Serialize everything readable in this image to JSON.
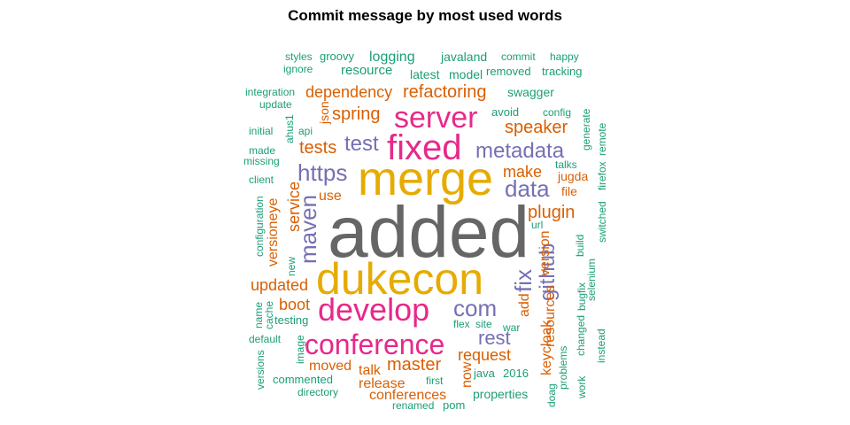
{
  "chart_data": {
    "type": "wordcloud",
    "title": "Commit message by most used words",
    "palette": {
      "green": "#1b9e77",
      "orange": "#d95f02",
      "purple": "#7570b3",
      "pink": "#e7298a",
      "gold": "#e6ab02",
      "gray": "#666666"
    },
    "words": [
      {
        "text": "added",
        "color": "gray"
      },
      {
        "text": "merge",
        "color": "gold"
      },
      {
        "text": "dukecon",
        "color": "gold"
      },
      {
        "text": "fixed",
        "color": "pink"
      },
      {
        "text": "server",
        "color": "pink"
      },
      {
        "text": "develop",
        "color": "pink"
      },
      {
        "text": "conference",
        "color": "pink"
      },
      {
        "text": "https",
        "color": "purple"
      },
      {
        "text": "metadata",
        "color": "purple"
      },
      {
        "text": "data",
        "color": "purple"
      },
      {
        "text": "maven",
        "color": "purple"
      },
      {
        "text": "test",
        "color": "purple"
      },
      {
        "text": "com",
        "color": "purple"
      },
      {
        "text": "github",
        "color": "purple"
      },
      {
        "text": "fix",
        "color": "purple"
      },
      {
        "text": "rest",
        "color": "purple"
      },
      {
        "text": "refactoring",
        "color": "orange"
      },
      {
        "text": "dependency",
        "color": "orange"
      },
      {
        "text": "spring",
        "color": "orange"
      },
      {
        "text": "speaker",
        "color": "orange"
      },
      {
        "text": "tests",
        "color": "orange"
      },
      {
        "text": "make",
        "color": "orange"
      },
      {
        "text": "plugin",
        "color": "orange"
      },
      {
        "text": "master",
        "color": "orange"
      },
      {
        "text": "request",
        "color": "orange"
      },
      {
        "text": "service",
        "color": "orange"
      },
      {
        "text": "version",
        "color": "orange"
      },
      {
        "text": "updated",
        "color": "orange"
      },
      {
        "text": "boot",
        "color": "orange"
      },
      {
        "text": "resources",
        "color": "orange"
      },
      {
        "text": "keycloak",
        "color": "orange"
      },
      {
        "text": "release",
        "color": "orange"
      },
      {
        "text": "conferences",
        "color": "orange"
      },
      {
        "text": "moved",
        "color": "orange"
      },
      {
        "text": "talk",
        "color": "orange"
      },
      {
        "text": "now",
        "color": "orange"
      },
      {
        "text": "add",
        "color": "orange"
      },
      {
        "text": "json",
        "color": "orange"
      },
      {
        "text": "use",
        "color": "orange"
      },
      {
        "text": "versioneye",
        "color": "orange"
      },
      {
        "text": "jugda",
        "color": "orange"
      },
      {
        "text": "file",
        "color": "orange"
      },
      {
        "text": "logging",
        "color": "green"
      },
      {
        "text": "resource",
        "color": "green"
      },
      {
        "text": "javaland",
        "color": "green"
      },
      {
        "text": "latest",
        "color": "green"
      },
      {
        "text": "model",
        "color": "green"
      },
      {
        "text": "swagger",
        "color": "green"
      },
      {
        "text": "avoid",
        "color": "green"
      },
      {
        "text": "config",
        "color": "green"
      },
      {
        "text": "styles",
        "color": "green"
      },
      {
        "text": "groovy",
        "color": "green"
      },
      {
        "text": "commit",
        "color": "green"
      },
      {
        "text": "happy",
        "color": "green"
      },
      {
        "text": "ignore",
        "color": "green"
      },
      {
        "text": "removed",
        "color": "green"
      },
      {
        "text": "tracking",
        "color": "green"
      },
      {
        "text": "integration",
        "color": "green"
      },
      {
        "text": "update",
        "color": "green"
      },
      {
        "text": "ahus1",
        "color": "green"
      },
      {
        "text": "initial",
        "color": "green"
      },
      {
        "text": "api",
        "color": "green"
      },
      {
        "text": "made",
        "color": "green"
      },
      {
        "text": "missing",
        "color": "green"
      },
      {
        "text": "client",
        "color": "green"
      },
      {
        "text": "configuration",
        "color": "green"
      },
      {
        "text": "new",
        "color": "green"
      },
      {
        "text": "name",
        "color": "green"
      },
      {
        "text": "cache",
        "color": "green"
      },
      {
        "text": "testing",
        "color": "green"
      },
      {
        "text": "default",
        "color": "green"
      },
      {
        "text": "image",
        "color": "green"
      },
      {
        "text": "versions",
        "color": "green"
      },
      {
        "text": "commented",
        "color": "green"
      },
      {
        "text": "directory",
        "color": "green"
      },
      {
        "text": "renamed",
        "color": "green"
      },
      {
        "text": "pom",
        "color": "green"
      },
      {
        "text": "properties",
        "color": "green"
      },
      {
        "text": "java",
        "color": "green"
      },
      {
        "text": "2016",
        "color": "green"
      },
      {
        "text": "first",
        "color": "green"
      },
      {
        "text": "flex",
        "color": "green"
      },
      {
        "text": "site",
        "color": "green"
      },
      {
        "text": "war",
        "color": "green"
      },
      {
        "text": "url",
        "color": "green"
      },
      {
        "text": "build",
        "color": "green"
      },
      {
        "text": "switched",
        "color": "green"
      },
      {
        "text": "firefox",
        "color": "green"
      },
      {
        "text": "talks",
        "color": "green"
      },
      {
        "text": "generate",
        "color": "green"
      },
      {
        "text": "remote",
        "color": "green"
      },
      {
        "text": "selenium",
        "color": "green"
      },
      {
        "text": "bugfix",
        "color": "green"
      },
      {
        "text": "changed",
        "color": "green"
      },
      {
        "text": "problems",
        "color": "green"
      },
      {
        "text": "doag",
        "color": "green"
      },
      {
        "text": "work",
        "color": "green"
      },
      {
        "text": "instead",
        "color": "green"
      }
    ]
  }
}
